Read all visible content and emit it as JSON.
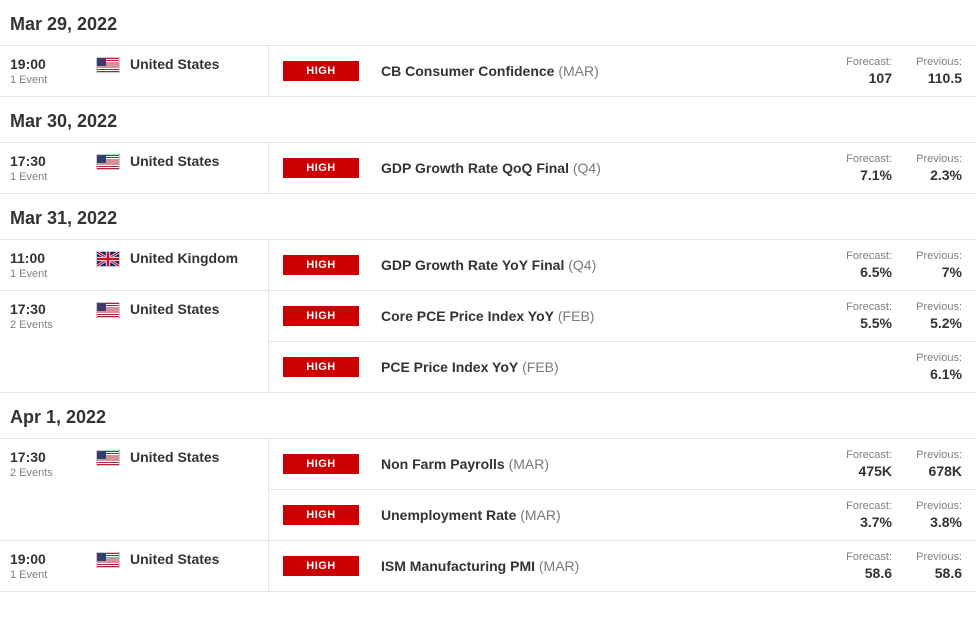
{
  "labels": {
    "forecast": "Forecast:",
    "previous": "Previous:"
  },
  "days": [
    {
      "date": "Mar 29, 2022",
      "groups": [
        {
          "time": "19:00",
          "eventCount": "1 Event",
          "country": "United States",
          "flag": "us",
          "events": [
            {
              "impact": "HIGH",
              "title": "CB Consumer Confidence",
              "period": "(MAR)",
              "forecast": "107",
              "previous": "110.5"
            }
          ]
        }
      ]
    },
    {
      "date": "Mar 30, 2022",
      "groups": [
        {
          "time": "17:30",
          "eventCount": "1 Event",
          "country": "United States",
          "flag": "us",
          "events": [
            {
              "impact": "HIGH",
              "title": "GDP Growth Rate QoQ Final",
              "period": "(Q4)",
              "forecast": "7.1%",
              "previous": "2.3%"
            }
          ]
        }
      ]
    },
    {
      "date": "Mar 31, 2022",
      "groups": [
        {
          "time": "11:00",
          "eventCount": "1 Event",
          "country": "United Kingdom",
          "flag": "uk",
          "events": [
            {
              "impact": "HIGH",
              "title": "GDP Growth Rate YoY Final",
              "period": "(Q4)",
              "forecast": "6.5%",
              "previous": "7%"
            }
          ]
        },
        {
          "time": "17:30",
          "eventCount": "2 Events",
          "country": "United States",
          "flag": "us",
          "events": [
            {
              "impact": "HIGH",
              "title": "Core PCE Price Index YoY",
              "period": "(FEB)",
              "forecast": "5.5%",
              "previous": "5.2%"
            },
            {
              "impact": "HIGH",
              "title": "PCE Price Index YoY",
              "period": "(FEB)",
              "forecast": "",
              "previous": "6.1%"
            }
          ]
        }
      ]
    },
    {
      "date": "Apr 1, 2022",
      "groups": [
        {
          "time": "17:30",
          "eventCount": "2 Events",
          "country": "United States",
          "flag": "us",
          "events": [
            {
              "impact": "HIGH",
              "title": "Non Farm Payrolls",
              "period": "(MAR)",
              "forecast": "475K",
              "previous": "678K"
            },
            {
              "impact": "HIGH",
              "title": "Unemployment Rate",
              "period": "(MAR)",
              "forecast": "3.7%",
              "previous": "3.8%"
            }
          ]
        },
        {
          "time": "19:00",
          "eventCount": "1 Event",
          "country": "United States",
          "flag": "us",
          "events": [
            {
              "impact": "HIGH",
              "title": "ISM Manufacturing PMI",
              "period": "(MAR)",
              "forecast": "58.6",
              "previous": "58.6"
            }
          ]
        }
      ]
    }
  ]
}
